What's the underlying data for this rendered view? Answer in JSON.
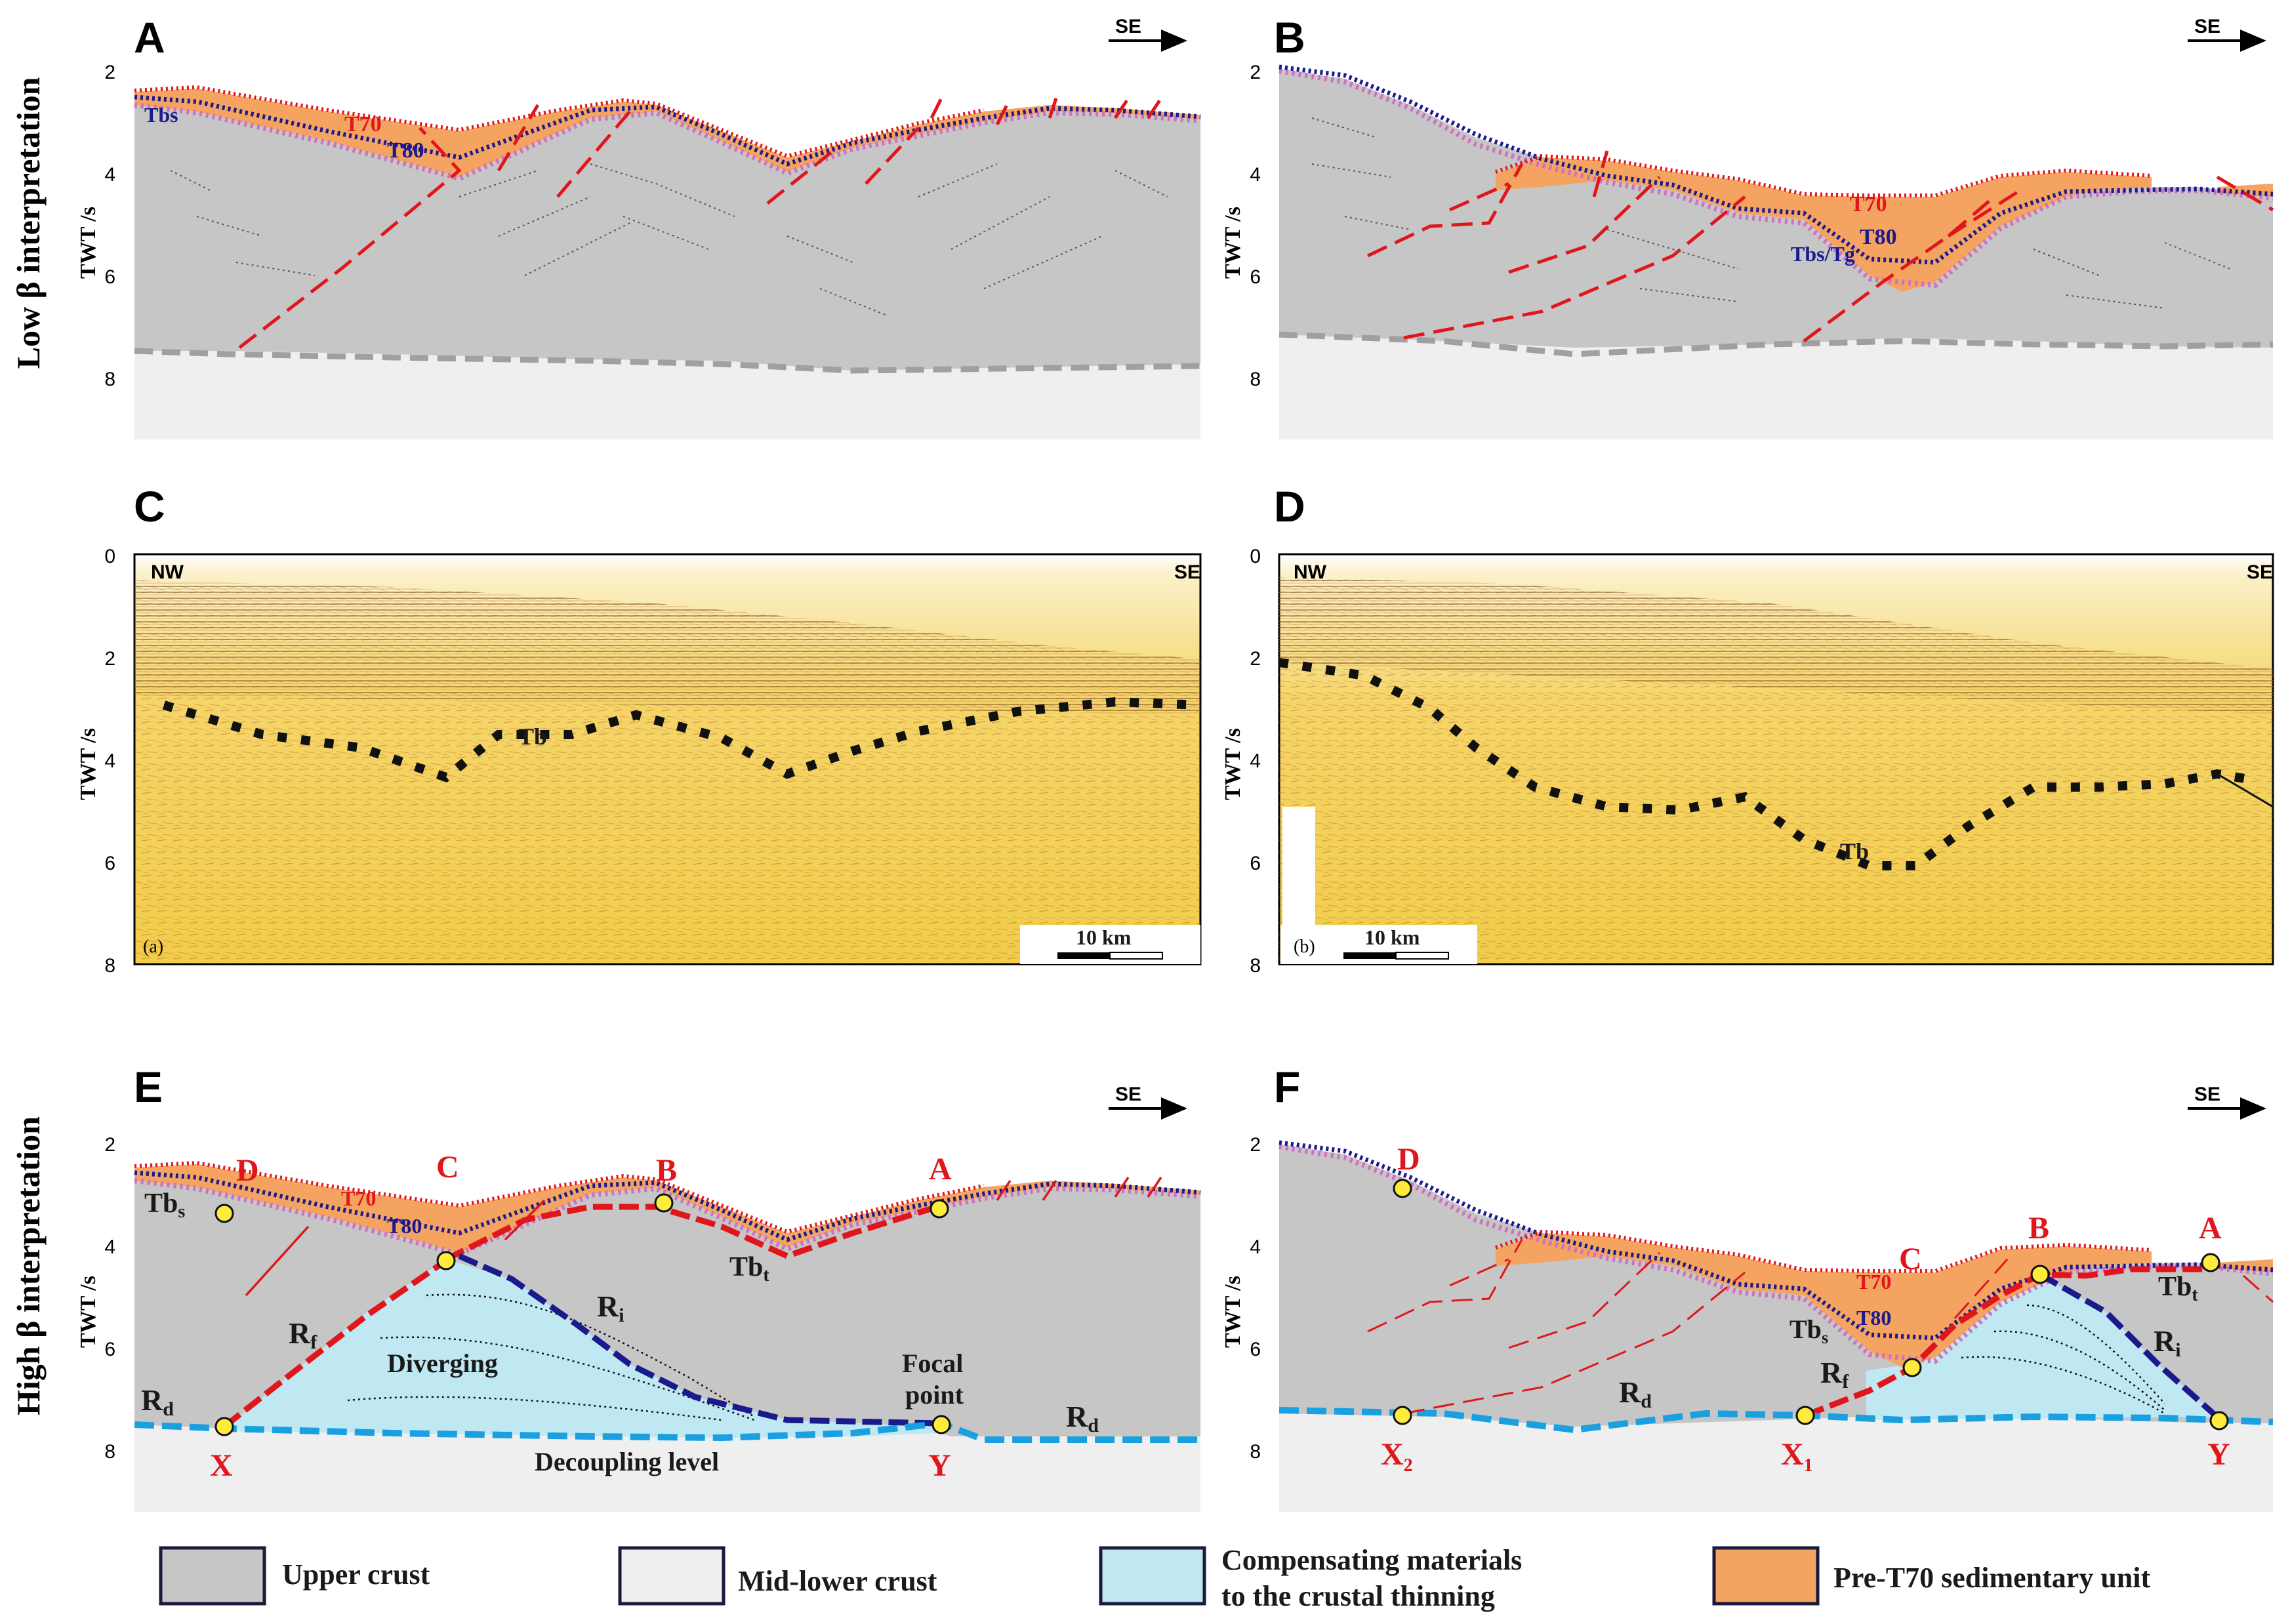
{
  "side_labels": {
    "low": "Low β interpretation",
    "high": "High β interpretation"
  },
  "panels": {
    "A": {
      "label": "A",
      "direction": "SE"
    },
    "B": {
      "label": "B",
      "direction": "SE"
    },
    "C": {
      "label": "C",
      "left_dir": "NW",
      "right_dir": "SE",
      "sublabel": "(a)",
      "scale": "10 km"
    },
    "D": {
      "label": "D",
      "left_dir": "NW",
      "right_dir": "SE",
      "sublabel": "(b)",
      "scale": "10 km"
    },
    "E": {
      "label": "E",
      "direction": "SE"
    },
    "F": {
      "label": "F",
      "direction": "SE"
    }
  },
  "axis": {
    "ylabel": "TWT /s",
    "ticks_top": [
      "2",
      "4",
      "6",
      "8"
    ],
    "ticks_mid": [
      "0",
      "2",
      "4",
      "6",
      "8"
    ]
  },
  "labels": {
    "tbs": "Tbs",
    "t70": "T70",
    "t80": "T80",
    "tbs_tg": "Tbs/Tg",
    "tb": "Tb",
    "tbs_main": "Tb",
    "tbs_sub": "s",
    "tbt_main": "Tb",
    "tbt_sub": "t",
    "ri_main": "R",
    "ri_sub": "i",
    "rf_main": "R",
    "rf_sub": "f",
    "rd_main": "R",
    "rd_sub": "d",
    "diverging": "Diverging",
    "decoupling": "Decoupling level",
    "focal1": "Focal",
    "focal2": "point",
    "pt_a": "A",
    "pt_b": "B",
    "pt_c": "C",
    "pt_d": "D",
    "pt_x": "X",
    "pt_y": "Y",
    "pt_x_main": "X",
    "pt_x1_sub": "1",
    "pt_x2_sub": "2"
  },
  "legend": [
    {
      "label": "Upper crust",
      "color": "#c6c6c6"
    },
    {
      "label": "Mid-lower crust",
      "color": "#efefef"
    },
    {
      "label_line1": "Compensating materials",
      "label_line2": "to the crustal thinning",
      "color": "#bfe8f2"
    },
    {
      "label": "Pre-T70 sedimentary unit",
      "color": "#f4a460"
    }
  ],
  "colors": {
    "upper_crust": "#c6c6c6",
    "mid_lower": "#efefef",
    "compensating": "#bfe8f2",
    "sediment": "#f4a460",
    "fault": "#e0161c",
    "t80": "#1a1a8c",
    "tbs": "#d070c0",
    "decoupling": "#1aa0e0"
  }
}
